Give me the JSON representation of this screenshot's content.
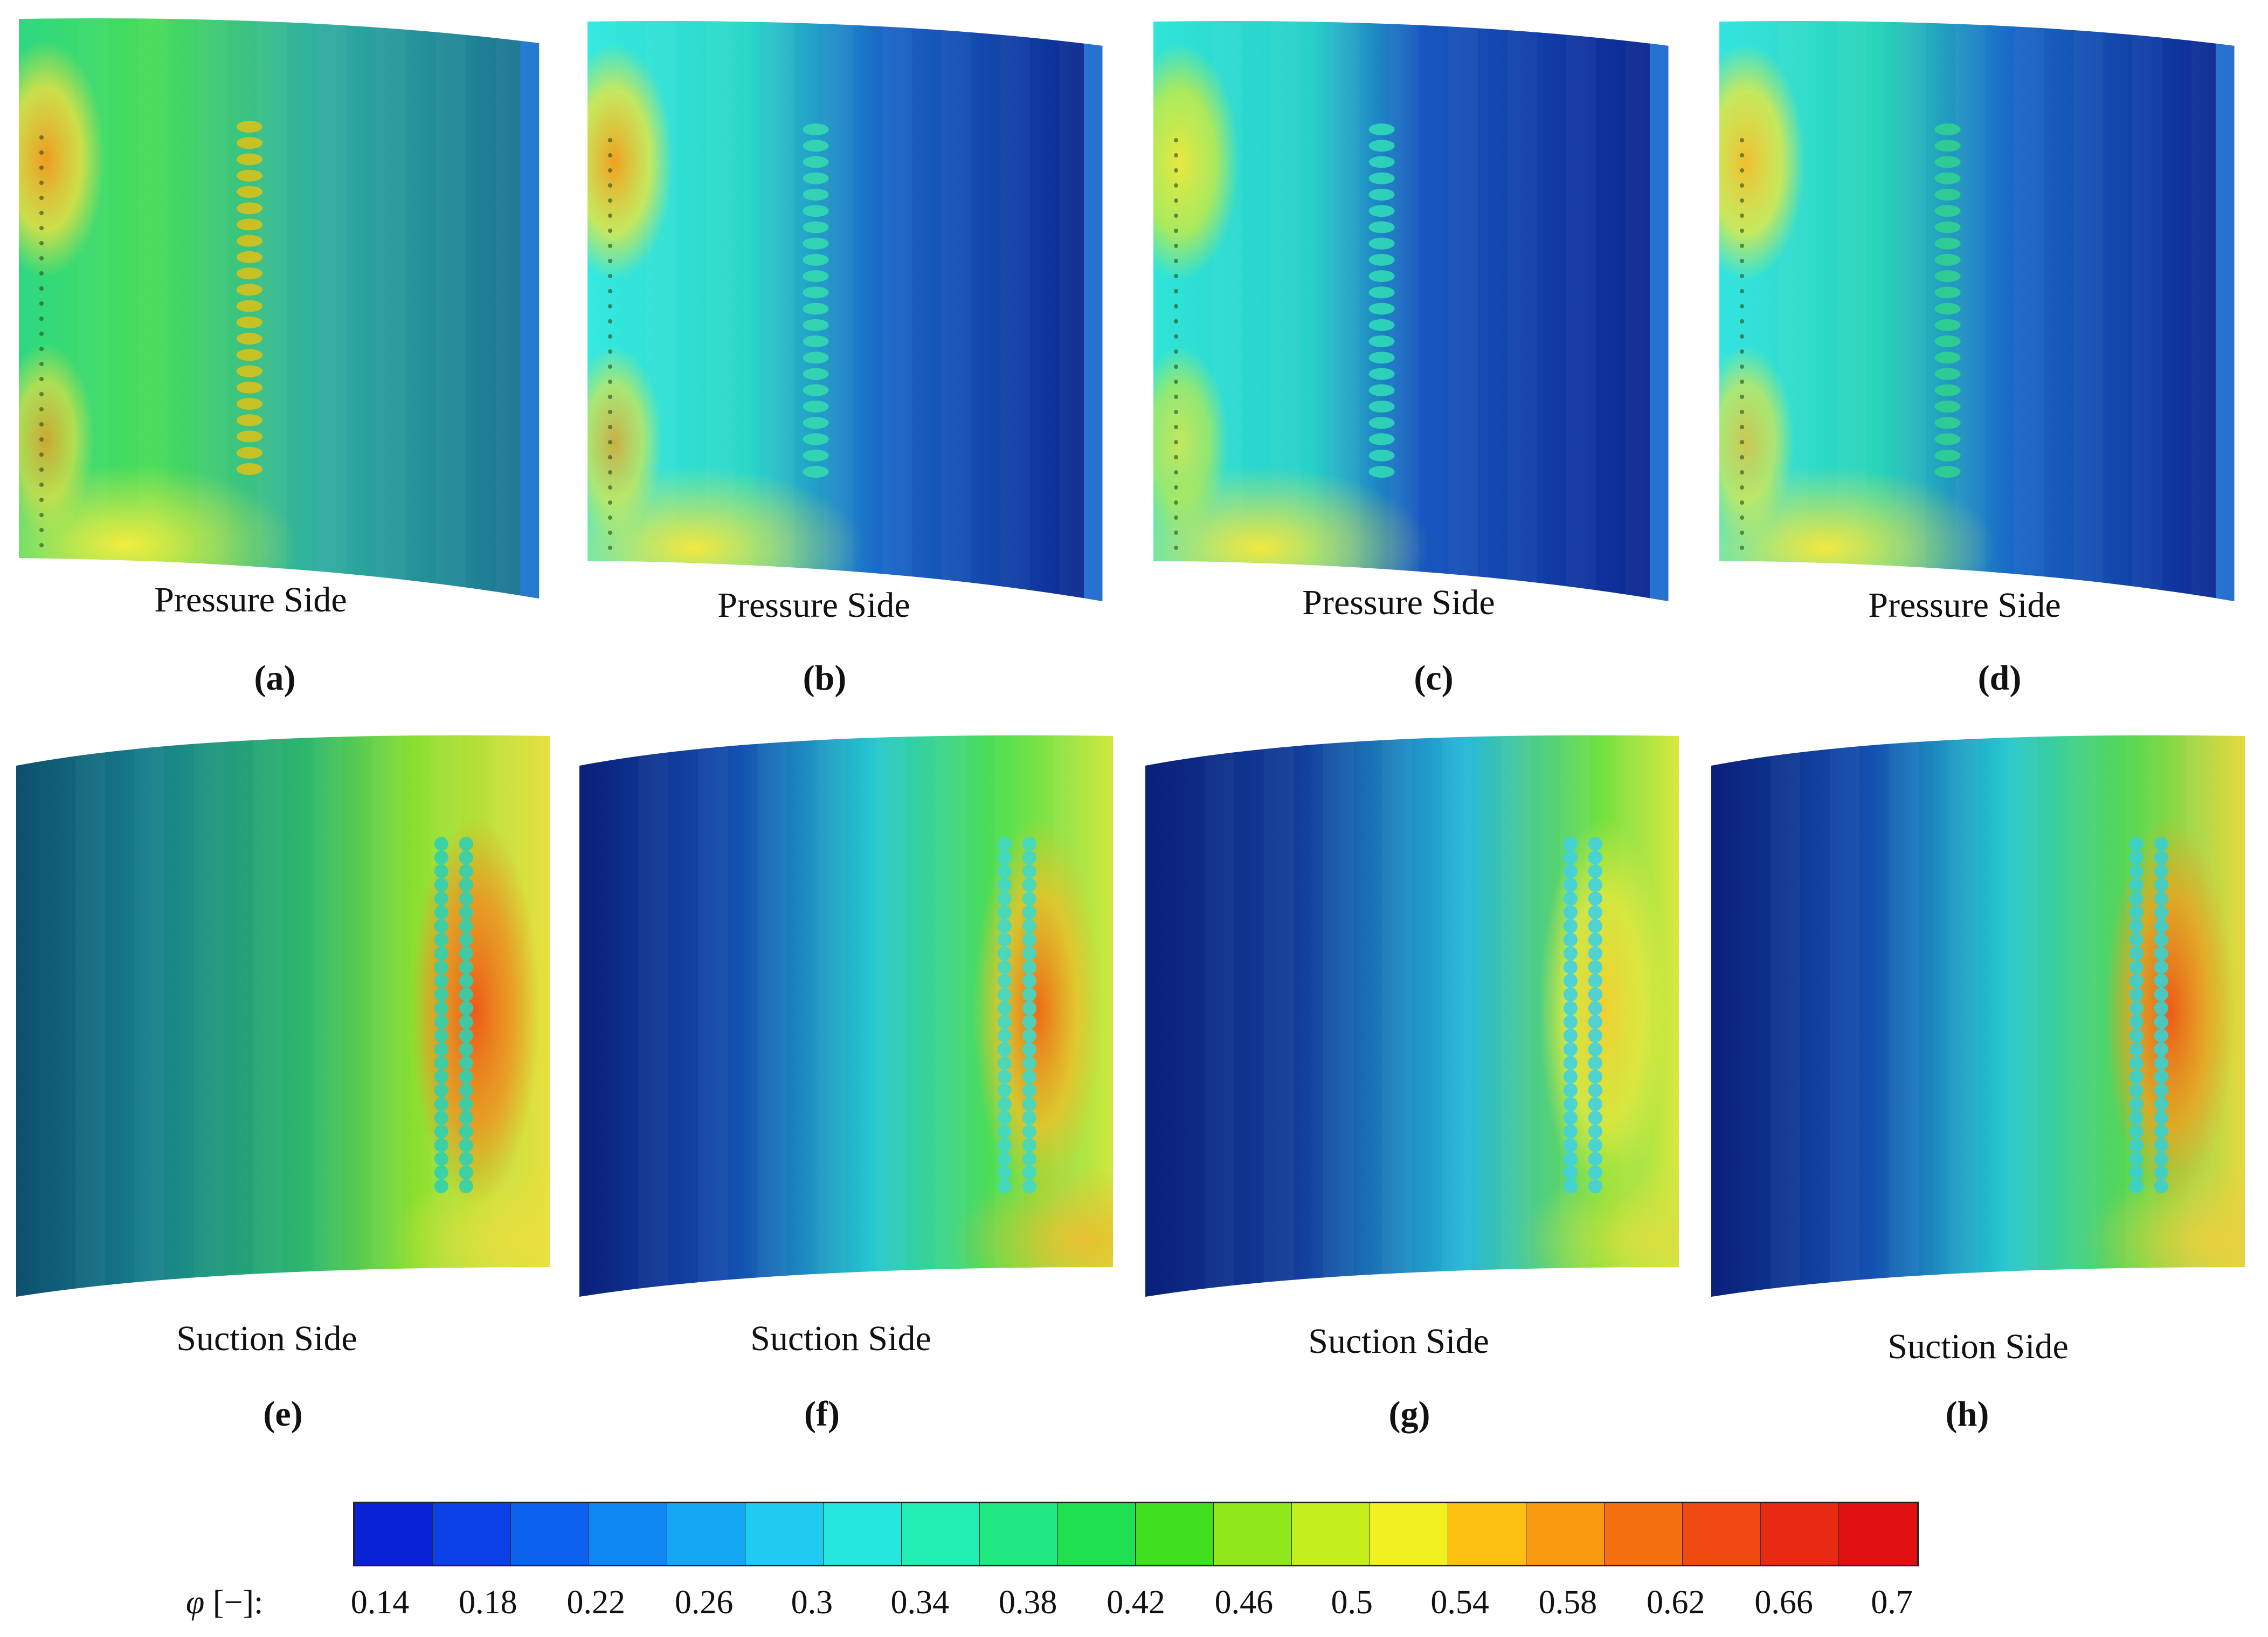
{
  "panels": [
    {
      "id": "a",
      "label": "Pressure Side",
      "letter": "(a)"
    },
    {
      "id": "b",
      "label": "Pressure Side",
      "letter": "(b)"
    },
    {
      "id": "c",
      "label": "Pressure Side",
      "letter": "(c)"
    },
    {
      "id": "d",
      "label": "Pressure Side",
      "letter": "(d)"
    },
    {
      "id": "e",
      "label": "Suction Side",
      "letter": "(e)"
    },
    {
      "id": "f",
      "label": "Suction Side",
      "letter": "(f)"
    },
    {
      "id": "g",
      "label": "Suction Side",
      "letter": "(g)"
    },
    {
      "id": "h",
      "label": "Suction Side",
      "letter": "(h)"
    }
  ],
  "colorbar": {
    "title": "φ",
    "unit": "[−]:",
    "ticks": [
      "0.14",
      "0.18",
      "0.22",
      "0.26",
      "0.3",
      "0.34",
      "0.38",
      "0.42",
      "0.46",
      "0.5",
      "0.54",
      "0.58",
      "0.62",
      "0.66",
      "0.7"
    ],
    "colors": [
      "#0a22d6",
      "#0a40e6",
      "#0c62ee",
      "#0d86f2",
      "#14a8f4",
      "#20cbf2",
      "#26e6e0",
      "#22eeb4",
      "#1ee880",
      "#1ee050",
      "#40e020",
      "#8ee81a",
      "#c4ee1c",
      "#f2f020",
      "#fcc010",
      "#f89a10",
      "#f47010",
      "#ee4a12",
      "#e82a12",
      "#e01010"
    ]
  }
}
